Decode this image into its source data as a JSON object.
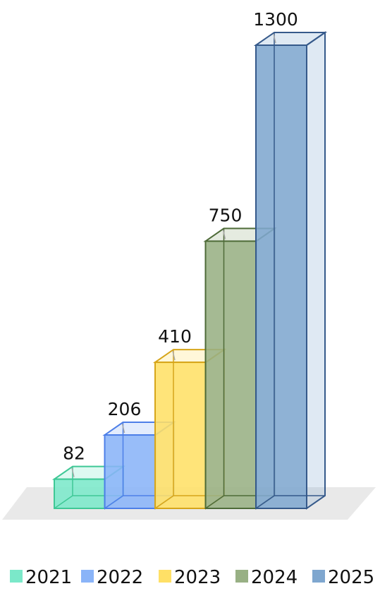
{
  "chart_data": {
    "type": "bar",
    "title": "",
    "xlabel": "",
    "ylabel": "",
    "categories": [
      "2021",
      "2022",
      "2023",
      "2024",
      "2025"
    ],
    "values": [
      82,
      206,
      410,
      750,
      1300
    ],
    "ylim": [
      0,
      1300
    ],
    "grid": false,
    "legend": "bottom",
    "colors": [
      "#7be8c9",
      "#8ab4f8",
      "#ffe066",
      "#98b084",
      "#7fa7cf"
    ],
    "edge_colors": [
      "#3fc896",
      "#4d7fe8",
      "#d6a51a",
      "#4e6b38",
      "#35598a"
    ]
  }
}
